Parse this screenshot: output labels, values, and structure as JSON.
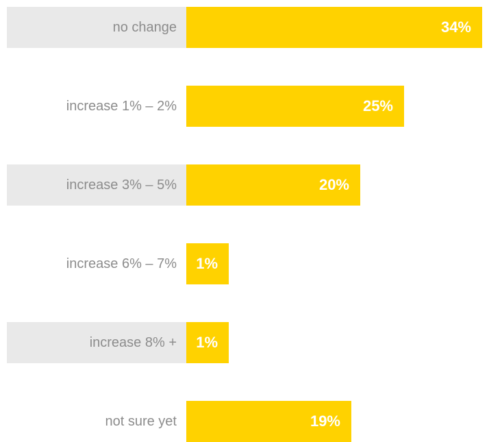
{
  "chart_data": {
    "type": "bar",
    "orientation": "horizontal",
    "categories": [
      "no change",
      "increase 1% – 2%",
      "increase 3% – 5%",
      "increase 6% – 7%",
      "increase 8% +",
      "not sure yet"
    ],
    "values": [
      34,
      25,
      20,
      1,
      1,
      19
    ],
    "value_labels": [
      "34%",
      "25%",
      "20%",
      "1%",
      "1%",
      "19%"
    ],
    "unit": "%",
    "xlim": [
      0,
      34
    ],
    "grid": false,
    "legend": "none",
    "colors": {
      "bar": "#ffd200",
      "row_band": "#e9e9e9",
      "category_text": "#8c8c8c",
      "value_text": "#ffffff"
    }
  }
}
